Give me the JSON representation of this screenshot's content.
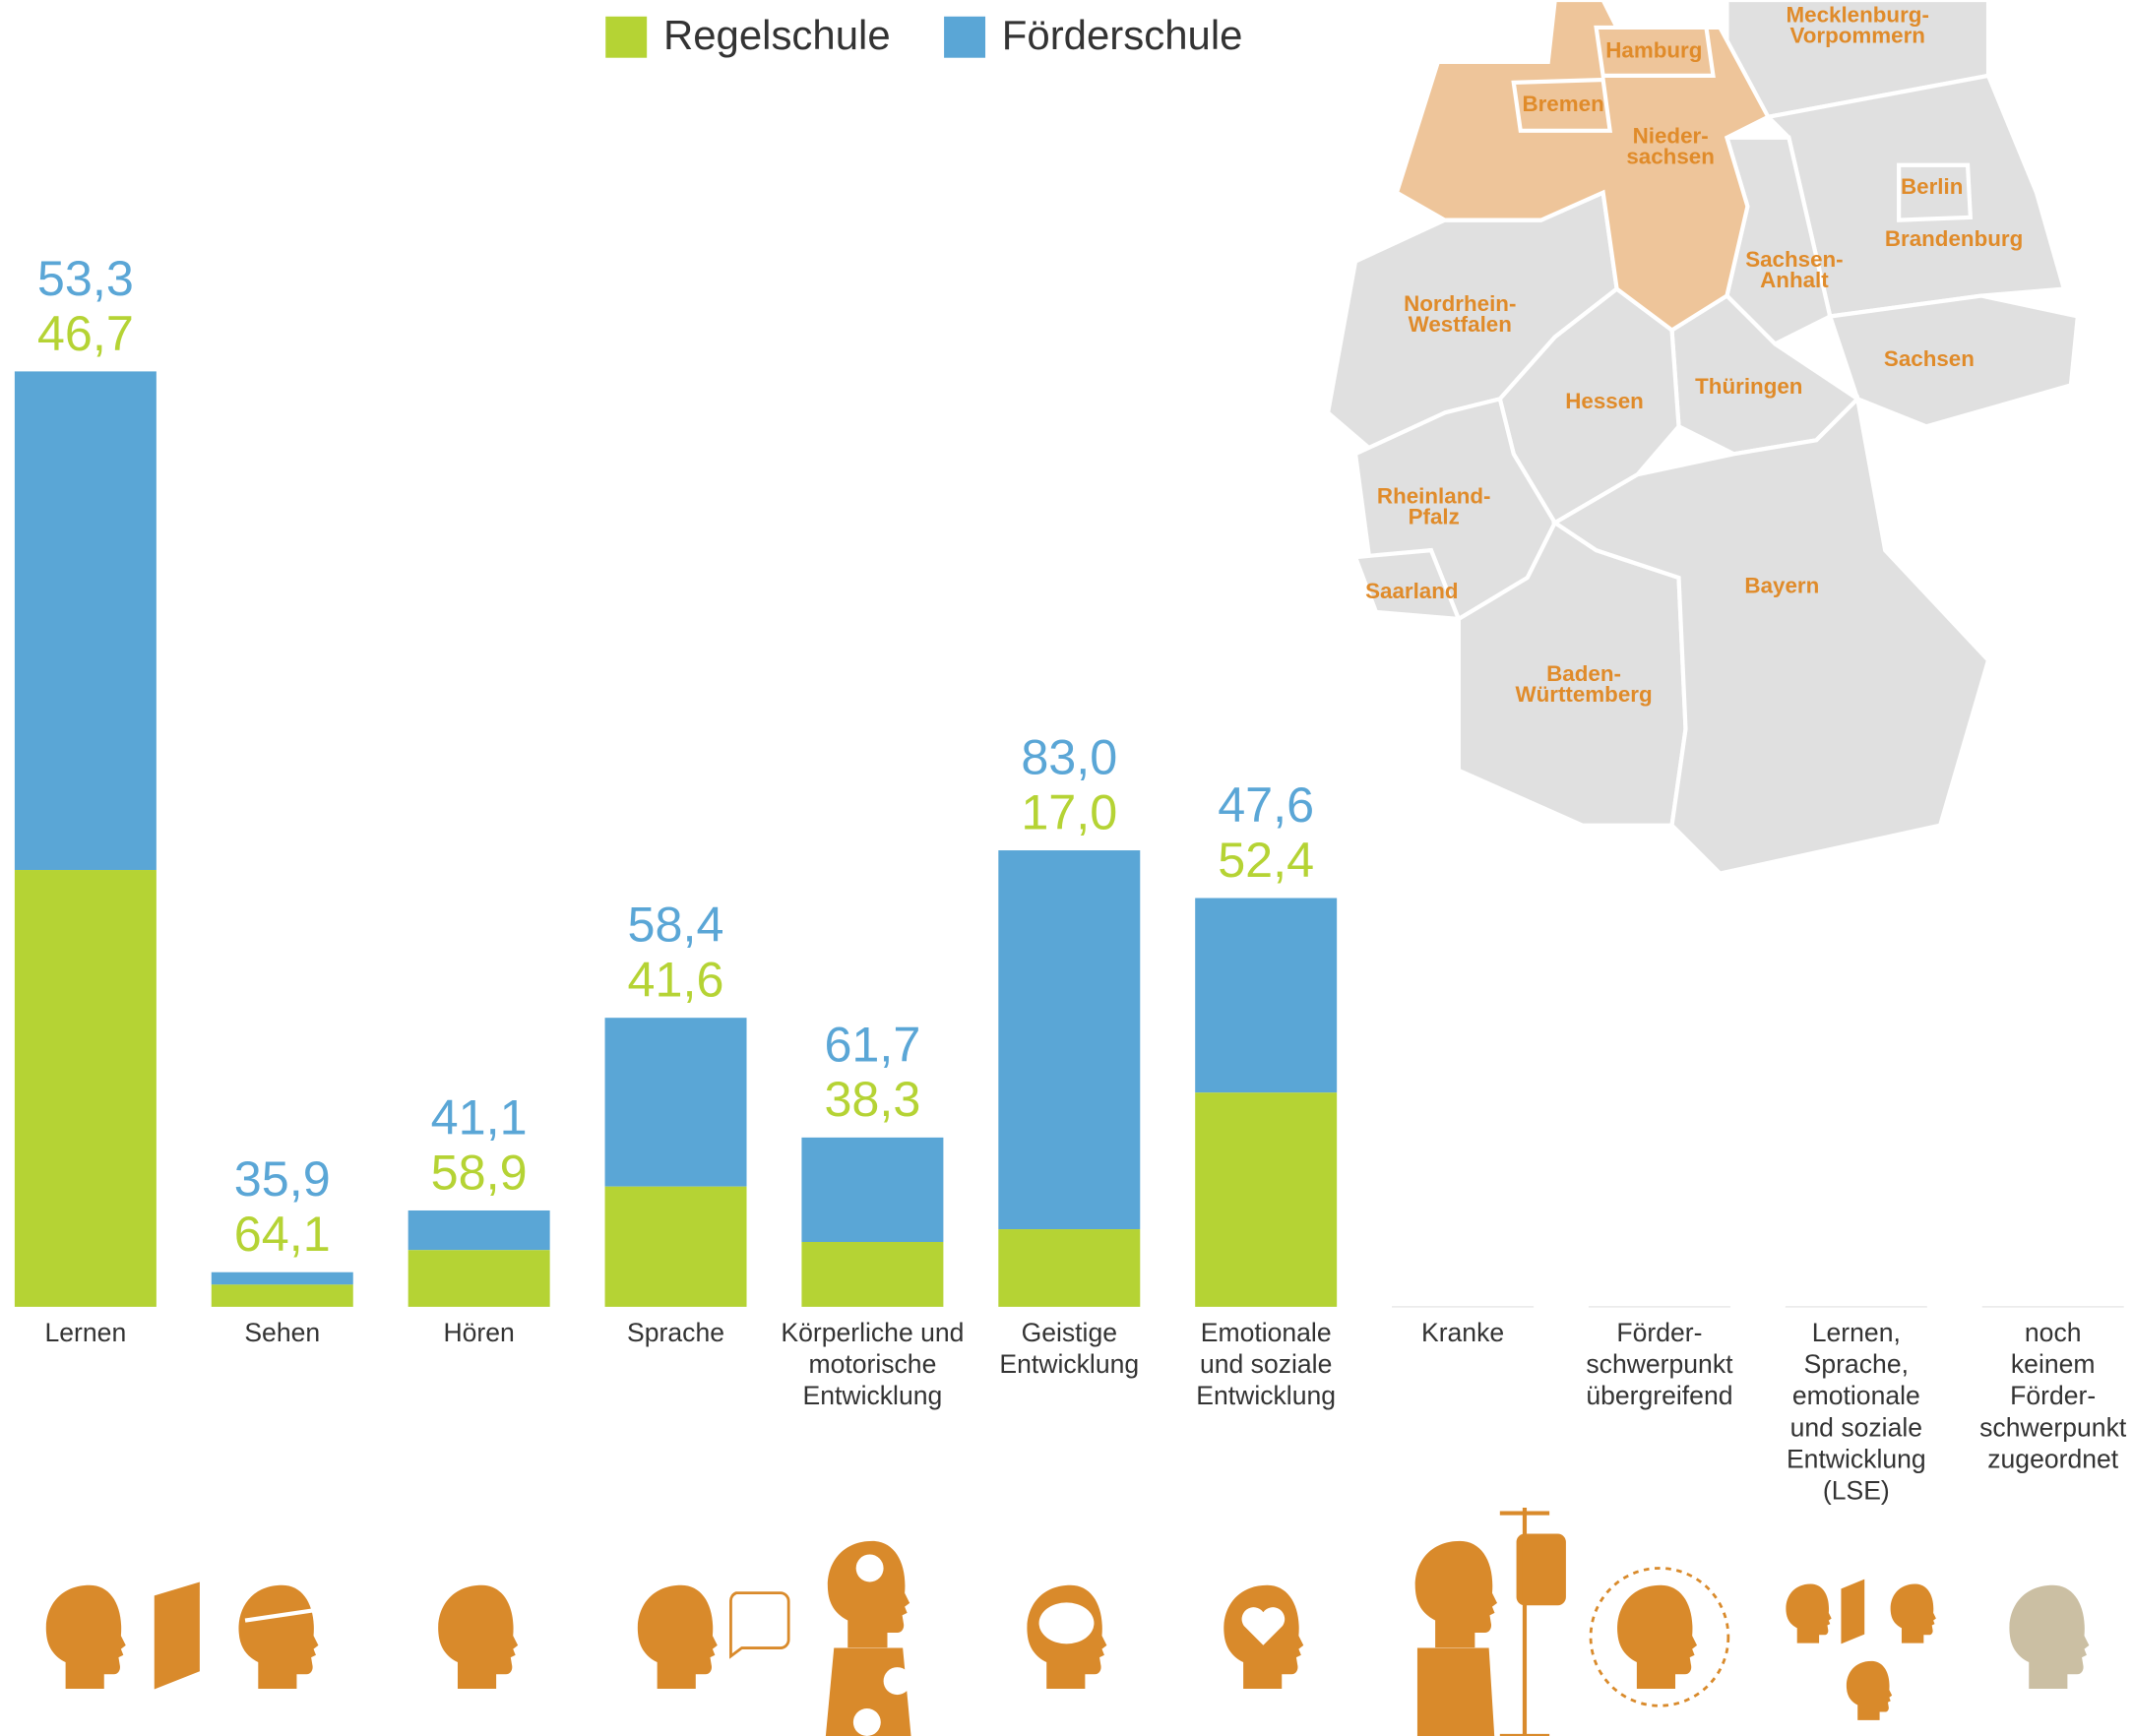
{
  "chart_data": {
    "type": "bar",
    "categories": [
      "Lernen",
      "Sehen",
      "Hören",
      "Sprache",
      "Körperliche und\nmotorische\nEntwicklung",
      "Geistige\nEntwicklung",
      "Emotionale\nund soziale\nEntwicklung",
      "Kranke",
      "Förder-\nschwerpunkt\nübergreifend",
      "Lernen,\nSprache,\nemotionale\nund soziale\nEntwicklung\n(LSE)",
      "noch\nkeinem\nFörder-\nschwerpunkt\nzugeordnet"
    ],
    "totals": [
      100,
      3.7,
      10.3,
      30.9,
      18.1,
      48.8,
      43.7,
      null,
      null,
      null,
      null
    ],
    "series": [
      {
        "name": "Regelschule",
        "color": "#b5d334",
        "values": [
          46.7,
          64.1,
          58.9,
          41.6,
          38.3,
          17.0,
          52.4,
          null,
          null,
          null,
          null
        ],
        "value_labels": [
          "46,7",
          "64,1",
          "58,9",
          "41,6",
          "38,3",
          "17,0",
          "52,4",
          null,
          null,
          null,
          null
        ]
      },
      {
        "name": "Förderschule",
        "color": "#5aa6d6",
        "values": [
          53.3,
          35.9,
          41.1,
          58.4,
          61.7,
          83.0,
          47.6,
          null,
          null,
          null,
          null
        ],
        "value_labels": [
          "53,3",
          "35,9",
          "41,1",
          "58,4",
          "61,7",
          "83,0",
          "47,6",
          null,
          null,
          null,
          null
        ]
      }
    ]
  },
  "map": {
    "states": [
      {
        "name": "Mecklenburg-\nVorpommern",
        "highlighted": false
      },
      {
        "name": "Brandenburg",
        "highlighted": false
      },
      {
        "name": "Berlin",
        "highlighted": false
      },
      {
        "name": "Sachsen-\nAnhalt",
        "highlighted": false
      },
      {
        "name": "Sachsen",
        "highlighted": false
      },
      {
        "name": "Thüringen",
        "highlighted": false
      },
      {
        "name": "Nordrhein-\nWestfalen",
        "highlighted": false
      },
      {
        "name": "Hessen",
        "highlighted": false
      },
      {
        "name": "Rheinland-\nPfalz",
        "highlighted": false
      },
      {
        "name": "Saarland",
        "highlighted": false
      },
      {
        "name": "Baden-\nWürttemberg",
        "highlighted": false
      },
      {
        "name": "Bayern",
        "highlighted": false
      },
      {
        "name": "Nieder-\nsachsen",
        "highlighted": true
      },
      {
        "name": "Bremen",
        "highlighted": true
      },
      {
        "name": "Hamburg",
        "highlighted": true
      }
    ]
  }
}
